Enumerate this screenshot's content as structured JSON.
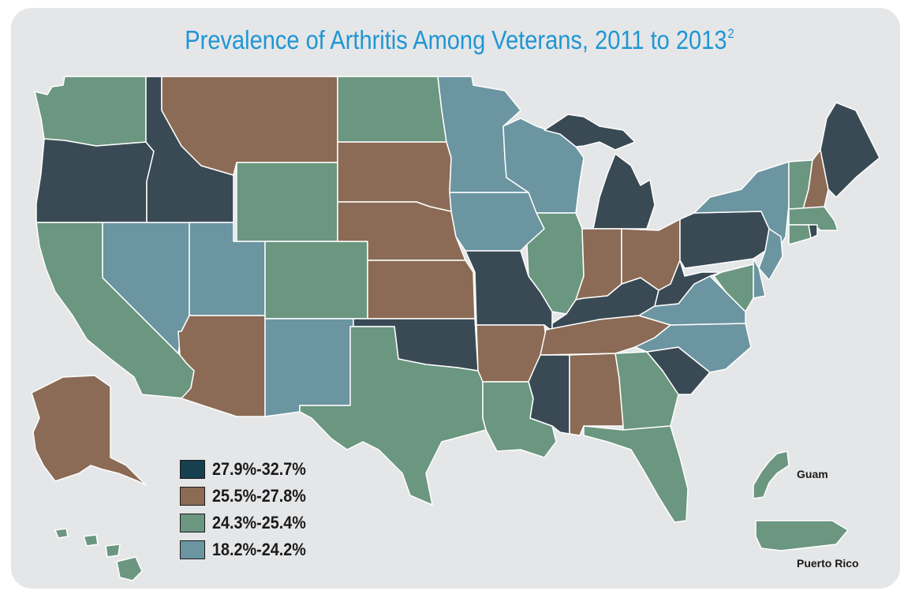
{
  "title": "Prevalence of Arthritis Among Veterans, 2011 to 2013",
  "title_footnote": "2",
  "colors": {
    "c1": "#3a4a55",
    "c2": "#8b6b55",
    "c3": "#6b9680",
    "c4": "#6b95a1",
    "legend_c1": "#163f4f",
    "background": "#e5e6e8",
    "title": "#1f96d4"
  },
  "legend": [
    {
      "label": "27.9%-32.7%",
      "class": "c1"
    },
    {
      "label": "25.5%-27.8%",
      "class": "c2"
    },
    {
      "label": "24.3%-25.4%",
      "class": "c3"
    },
    {
      "label": "18.2%-24.2%",
      "class": "c4"
    }
  ],
  "territories": {
    "guam": "Guam",
    "puerto_rico": "Puerto Rico"
  },
  "states": {
    "WA": "c3",
    "OR": "c1",
    "CA": "c3",
    "NV": "c4",
    "ID": "c1",
    "MT": "c2",
    "WY": "c3",
    "UT": "c4",
    "AZ": "c2",
    "CO": "c3",
    "NM": "c4",
    "ND": "c3",
    "SD": "c2",
    "NE": "c2",
    "KS": "c2",
    "OK": "c1",
    "TX": "c3",
    "MN": "c4",
    "IA": "c4",
    "MO": "c1",
    "AR": "c2",
    "LA": "c3",
    "WI": "c4",
    "IL": "c3",
    "MI": "c1",
    "IN": "c2",
    "OH": "c2",
    "KY": "c1",
    "TN": "c2",
    "MS": "c1",
    "AL": "c2",
    "GA": "c3",
    "FL": "c3",
    "SC": "c1",
    "NC": "c4",
    "VA": "c4",
    "WV": "c1",
    "PA": "c1",
    "NY": "c4",
    "VT": "c3",
    "NH": "c2",
    "ME": "c1",
    "MA": "c3",
    "RI": "c1",
    "CT": "c3",
    "NJ": "c4",
    "DE": "c4",
    "MD": "c3",
    "AK": "c2",
    "HI": "c3",
    "GU": "c3",
    "PR": "c3"
  }
}
